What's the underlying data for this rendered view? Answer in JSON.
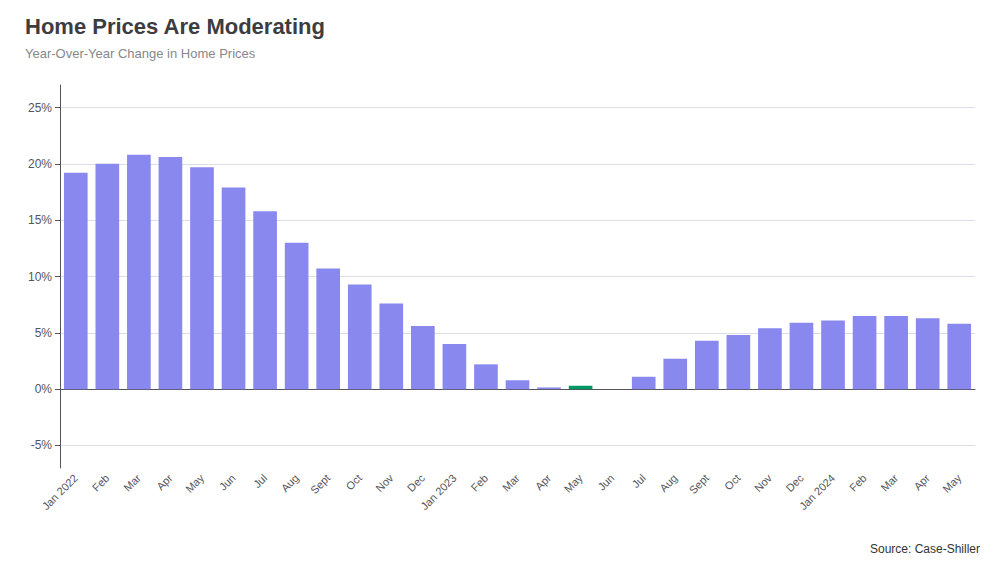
{
  "chart_data": {
    "type": "bar",
    "title": "Home Prices Are Moderating",
    "subtitle": "Year-Over-Year Change in Home Prices",
    "annotations": [
      "Source: Case-Shiller"
    ],
    "categories": [
      "Jan 2022",
      "Feb",
      "Mar",
      "Apr",
      "May",
      "Jun",
      "Jul",
      "Aug",
      "Sept",
      "Oct",
      "Nov",
      "Dec",
      "Jan 2023",
      "Feb",
      "Mar",
      "Apr",
      "May",
      "Jun",
      "Jul",
      "Aug",
      "Sept",
      "Oct",
      "Nov",
      "Dec",
      "Jan 2024",
      "Feb",
      "Mar",
      "Apr",
      "May"
    ],
    "values": [
      19.2,
      20.0,
      20.8,
      20.6,
      19.7,
      17.9,
      15.8,
      13.0,
      10.7,
      9.3,
      7.6,
      5.6,
      4.0,
      2.2,
      0.8,
      0.15,
      0.3,
      0.0,
      1.1,
      2.7,
      4.3,
      4.8,
      5.4,
      5.9,
      6.1,
      6.5,
      6.5,
      6.3,
      5.8
    ],
    "colors": [
      "#8888ee",
      "#8888ee",
      "#8888ee",
      "#8888ee",
      "#8888ee",
      "#8888ee",
      "#8888ee",
      "#8888ee",
      "#8888ee",
      "#8888ee",
      "#8888ee",
      "#8888ee",
      "#8888ee",
      "#8888ee",
      "#8888ee",
      "#8888ee",
      "#009966",
      "#8888ee",
      "#8888ee",
      "#8888ee",
      "#8888ee",
      "#8888ee",
      "#8888ee",
      "#8888ee",
      "#8888ee",
      "#8888ee",
      "#8888ee",
      "#8888ee",
      "#8888ee"
    ],
    "ylim": [
      -7,
      27
    ],
    "yticks": [
      {
        "value": -5,
        "label": "-5%"
      },
      {
        "value": 0,
        "label": "0%"
      },
      {
        "value": 5,
        "label": "5%"
      },
      {
        "value": 10,
        "label": "10%"
      },
      {
        "value": 15,
        "label": "15%"
      },
      {
        "value": 20,
        "label": "20%"
      },
      {
        "value": 25,
        "label": "25%"
      }
    ],
    "grid": true
  }
}
